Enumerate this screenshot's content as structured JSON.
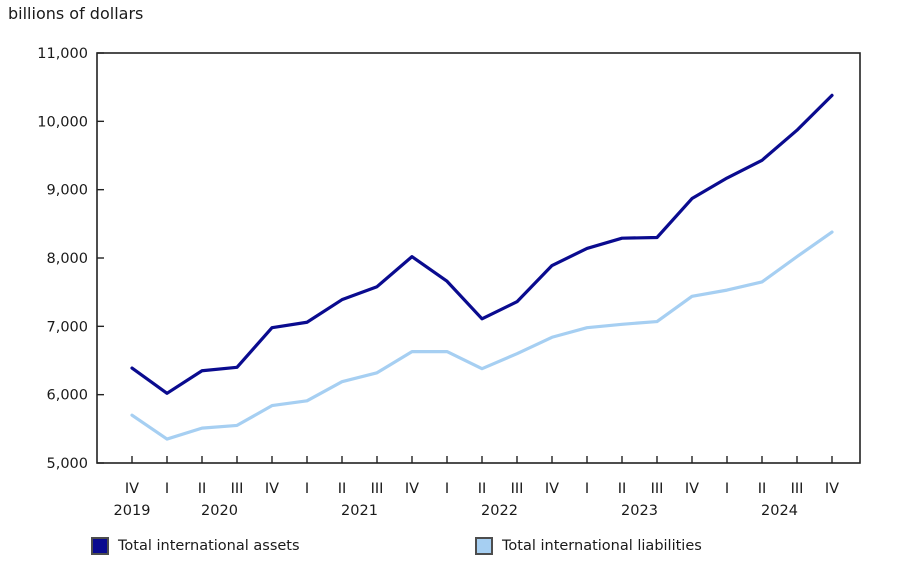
{
  "title": "billions of dollars",
  "chart_data": {
    "type": "line",
    "title": "billions of dollars",
    "xlabel": "",
    "ylabel": "billions of dollars",
    "ylim": [
      5000,
      11000
    ],
    "ytick_step": 1000,
    "ytick_labels": [
      "5,000",
      "6,000",
      "7,000",
      "8,000",
      "9,000",
      "10,000",
      "11,000"
    ],
    "grid": false,
    "legend_position": "bottom",
    "x_quarter_labels": [
      "IV",
      "I",
      "II",
      "III",
      "IV",
      "I",
      "II",
      "III",
      "IV",
      "I",
      "II",
      "III",
      "IV",
      "I",
      "II",
      "III",
      "IV",
      "I",
      "II",
      "III",
      "IV"
    ],
    "year_groups": [
      {
        "label": "2019",
        "center_index": 0
      },
      {
        "label": "2020",
        "center_index": 2.5
      },
      {
        "label": "2021",
        "center_index": 6.5
      },
      {
        "label": "2022",
        "center_index": 10.5
      },
      {
        "label": "2023",
        "center_index": 14.5
      },
      {
        "label": "2024",
        "center_index": 18.5
      }
    ],
    "series": [
      {
        "name": "Total international assets",
        "color": "#0a0b8f",
        "values": [
          6390,
          6020,
          6350,
          6400,
          6980,
          7060,
          7390,
          7580,
          8020,
          7660,
          7110,
          7360,
          7890,
          8140,
          8290,
          8300,
          8870,
          9170,
          9430,
          9870,
          10380
        ]
      },
      {
        "name": "Total international liabilities",
        "color": "#a6cff2",
        "values": [
          5700,
          5350,
          5510,
          5550,
          5840,
          5910,
          6190,
          6320,
          6630,
          6630,
          6380,
          6600,
          6840,
          6980,
          7030,
          7070,
          7440,
          7530,
          7650,
          8020,
          8380
        ]
      }
    ]
  }
}
